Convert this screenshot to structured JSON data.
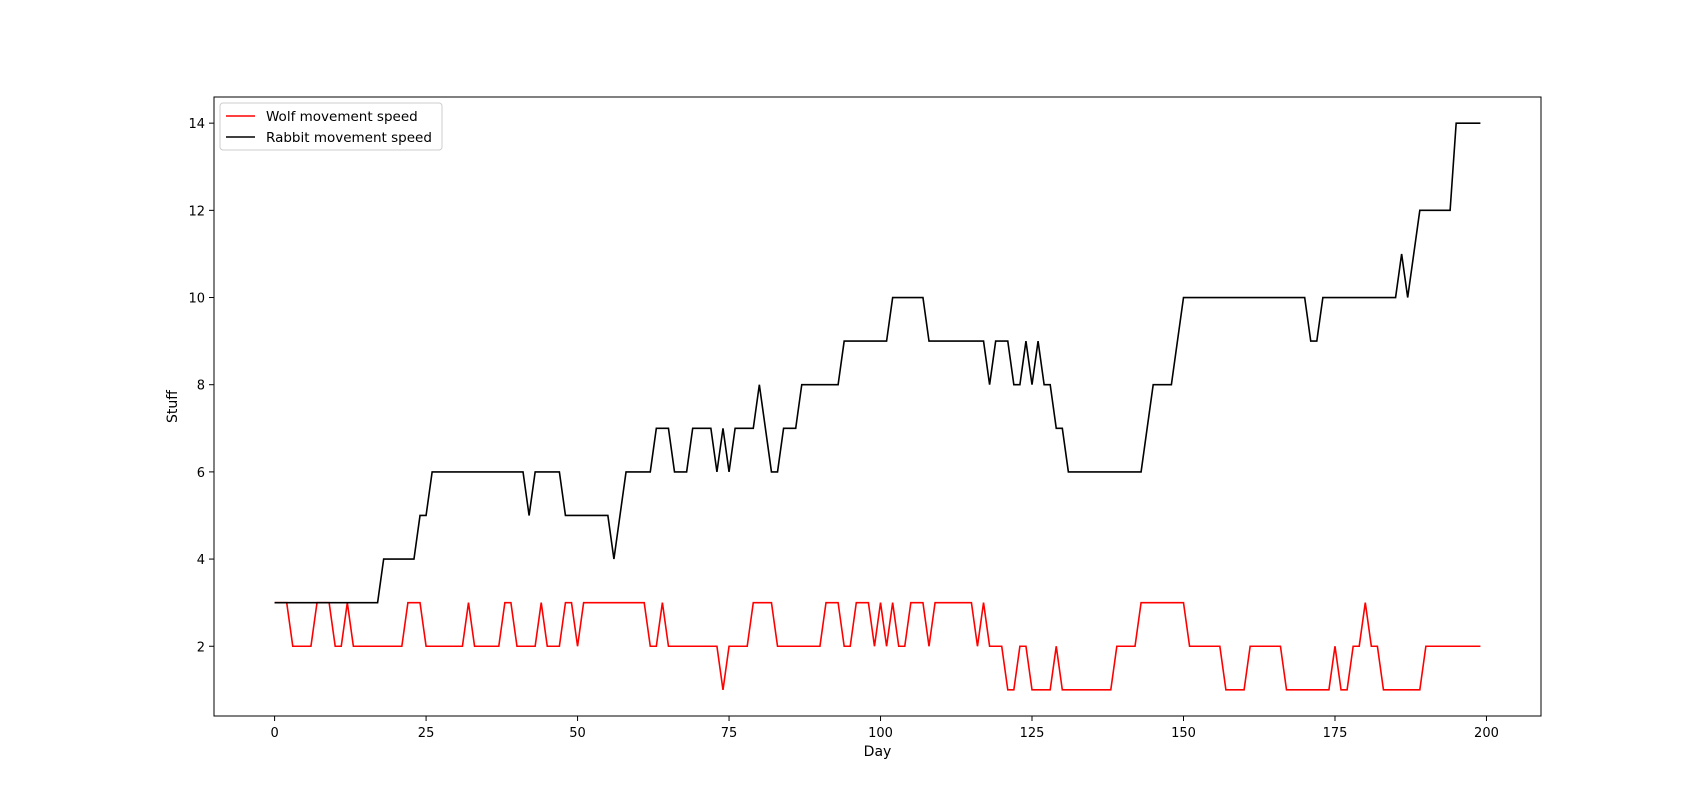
{
  "chart_data": {
    "type": "line",
    "title": "",
    "xlabel": "Day",
    "ylabel": "Stuff",
    "xlim": [
      -10,
      209
    ],
    "ylim": [
      0.4,
      14.6
    ],
    "xticks": [
      0,
      25,
      50,
      75,
      100,
      125,
      150,
      175,
      200
    ],
    "yticks": [
      2,
      4,
      6,
      8,
      10,
      12,
      14
    ],
    "grid": false,
    "legend": "upper-left",
    "series": [
      {
        "name": "Wolf movement speed",
        "color": "#ff0000",
        "points": [
          [
            0,
            3
          ],
          [
            2,
            3
          ],
          [
            3,
            2
          ],
          [
            6,
            2
          ],
          [
            7,
            3
          ],
          [
            9,
            3
          ],
          [
            10,
            2
          ],
          [
            11,
            2
          ],
          [
            12,
            3
          ],
          [
            13,
            2
          ],
          [
            21,
            2
          ],
          [
            22,
            3
          ],
          [
            24,
            3
          ],
          [
            25,
            2
          ],
          [
            31,
            2
          ],
          [
            32,
            3
          ],
          [
            33,
            2
          ],
          [
            37,
            2
          ],
          [
            38,
            3
          ],
          [
            39,
            3
          ],
          [
            40,
            2
          ],
          [
            43,
            2
          ],
          [
            44,
            3
          ],
          [
            45,
            2
          ],
          [
            47,
            2
          ],
          [
            48,
            3
          ],
          [
            49,
            3
          ],
          [
            50,
            2
          ],
          [
            51,
            3
          ],
          [
            61,
            3
          ],
          [
            62,
            2
          ],
          [
            63,
            2
          ],
          [
            64,
            3
          ],
          [
            65,
            2
          ],
          [
            73,
            2
          ],
          [
            74,
            1
          ],
          [
            75,
            2
          ],
          [
            78,
            2
          ],
          [
            79,
            3
          ],
          [
            82,
            3
          ],
          [
            83,
            2
          ],
          [
            90,
            2
          ],
          [
            91,
            3
          ],
          [
            93,
            3
          ],
          [
            94,
            2
          ],
          [
            95,
            2
          ],
          [
            96,
            3
          ],
          [
            98,
            3
          ],
          [
            99,
            2
          ],
          [
            100,
            3
          ],
          [
            101,
            2
          ],
          [
            102,
            3
          ],
          [
            103,
            2
          ],
          [
            104,
            2
          ],
          [
            105,
            3
          ],
          [
            107,
            3
          ],
          [
            108,
            2
          ],
          [
            109,
            3
          ],
          [
            115,
            3
          ],
          [
            116,
            2
          ],
          [
            117,
            3
          ],
          [
            118,
            2
          ],
          [
            120,
            2
          ],
          [
            121,
            1
          ],
          [
            122,
            1
          ],
          [
            123,
            2
          ],
          [
            124,
            2
          ],
          [
            125,
            1
          ],
          [
            128,
            1
          ],
          [
            129,
            2
          ],
          [
            130,
            1
          ],
          [
            138,
            1
          ],
          [
            139,
            2
          ],
          [
            142,
            2
          ],
          [
            143,
            3
          ],
          [
            150,
            3
          ],
          [
            151,
            2
          ],
          [
            156,
            2
          ],
          [
            157,
            1
          ],
          [
            160,
            1
          ],
          [
            161,
            2
          ],
          [
            166,
            2
          ],
          [
            167,
            1
          ],
          [
            174,
            1
          ],
          [
            175,
            2
          ],
          [
            176,
            1
          ],
          [
            177,
            1
          ],
          [
            178,
            2
          ],
          [
            179,
            2
          ],
          [
            180,
            3
          ],
          [
            181,
            2
          ],
          [
            182,
            2
          ],
          [
            183,
            1
          ],
          [
            189,
            1
          ],
          [
            190,
            2
          ],
          [
            199,
            2
          ]
        ]
      },
      {
        "name": "Rabbit movement speed",
        "color": "#000000",
        "points": [
          [
            0,
            3
          ],
          [
            17,
            3
          ],
          [
            18,
            4
          ],
          [
            23,
            4
          ],
          [
            24,
            5
          ],
          [
            25,
            5
          ],
          [
            26,
            6
          ],
          [
            41,
            6
          ],
          [
            42,
            5
          ],
          [
            43,
            6
          ],
          [
            47,
            6
          ],
          [
            48,
            5
          ],
          [
            55,
            5
          ],
          [
            56,
            4
          ],
          [
            58,
            6
          ],
          [
            62,
            6
          ],
          [
            63,
            7
          ],
          [
            65,
            7
          ],
          [
            66,
            6
          ],
          [
            68,
            6
          ],
          [
            69,
            7
          ],
          [
            72,
            7
          ],
          [
            73,
            6
          ],
          [
            74,
            7
          ],
          [
            75,
            6
          ],
          [
            76,
            7
          ],
          [
            79,
            7
          ],
          [
            80,
            8
          ],
          [
            82,
            6
          ],
          [
            83,
            6
          ],
          [
            84,
            7
          ],
          [
            86,
            7
          ],
          [
            87,
            8
          ],
          [
            93,
            8
          ],
          [
            94,
            9
          ],
          [
            101,
            9
          ],
          [
            102,
            10
          ],
          [
            107,
            10
          ],
          [
            108,
            9
          ],
          [
            117,
            9
          ],
          [
            118,
            8
          ],
          [
            119,
            9
          ],
          [
            121,
            9
          ],
          [
            122,
            8
          ],
          [
            123,
            8
          ],
          [
            124,
            9
          ],
          [
            125,
            8
          ],
          [
            126,
            9
          ],
          [
            127,
            8
          ],
          [
            128,
            8
          ],
          [
            129,
            7
          ],
          [
            130,
            7
          ],
          [
            131,
            6
          ],
          [
            143,
            6
          ],
          [
            145,
            8
          ],
          [
            148,
            8
          ],
          [
            150,
            10
          ],
          [
            170,
            10
          ],
          [
            171,
            9
          ],
          [
            172,
            9
          ],
          [
            173,
            10
          ],
          [
            185,
            10
          ],
          [
            186,
            11
          ],
          [
            187,
            10
          ],
          [
            189,
            12
          ],
          [
            194,
            12
          ],
          [
            195,
            14
          ],
          [
            199,
            14
          ]
        ]
      }
    ]
  }
}
